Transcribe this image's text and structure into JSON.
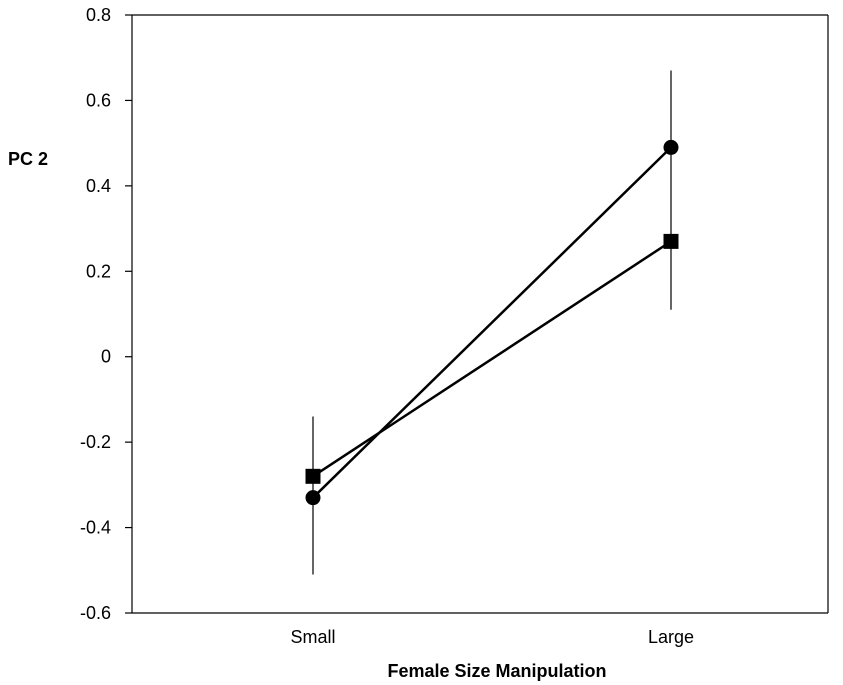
{
  "chart_data": {
    "type": "line",
    "title": "",
    "xlabel": "Female Size Manipulation",
    "ylabel": "PC 2",
    "categories": [
      "Small",
      "Large"
    ],
    "ylim": [
      -0.6,
      0.8
    ],
    "yticks": [
      -0.6,
      -0.4,
      -0.2,
      0,
      0.2,
      0.4,
      0.6,
      0.8
    ],
    "ytick_labels": [
      "-0.6",
      "-0.4",
      "-0.2",
      "0",
      "0.2",
      "0.4",
      "0.6",
      "0.8"
    ],
    "grid": false,
    "legend": false,
    "series": [
      {
        "marker": "circle",
        "values": [
          -0.33,
          0.49
        ],
        "error_low": [
          -0.51,
          0.11
        ],
        "error_high": [
          -0.14,
          0.67
        ],
        "color": "#000000"
      },
      {
        "marker": "square",
        "values": [
          -0.28,
          0.27
        ],
        "color": "#000000"
      }
    ]
  }
}
